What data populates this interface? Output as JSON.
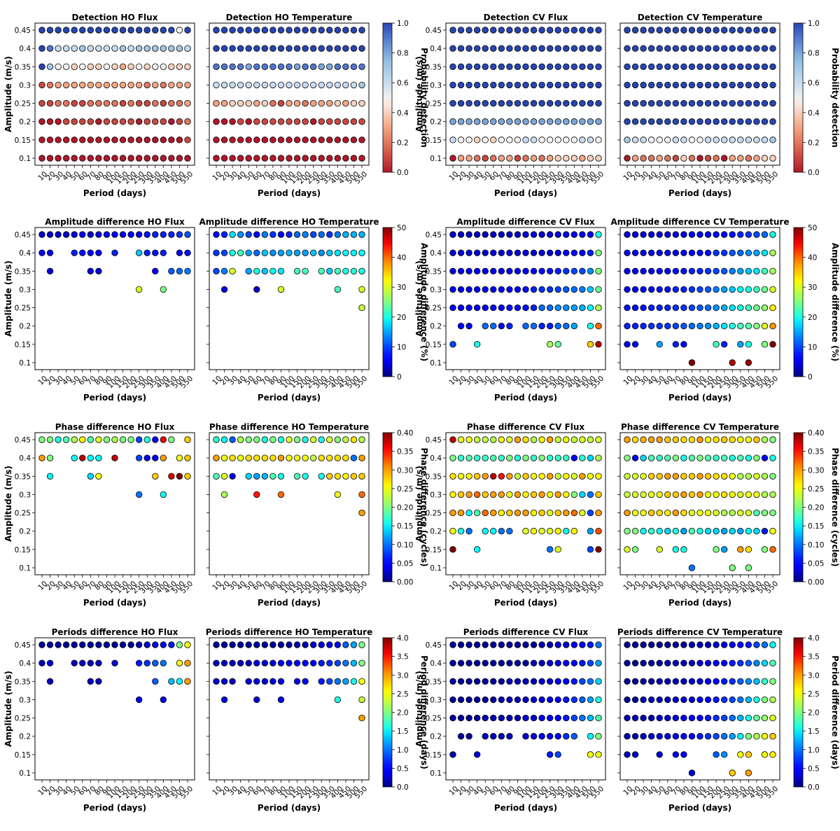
{
  "figure": {
    "xlabel": "Period (days)",
    "ylabel": "Amplitude (m/s)",
    "periods": [
      "10",
      "20",
      "30",
      "40",
      "50",
      "60",
      "70",
      "80",
      "90",
      "100",
      "150",
      "200",
      "250",
      "300",
      "350",
      "400",
      "450",
      "500",
      "550"
    ],
    "amplitudes": [
      "0.1",
      "0.15",
      "0.2",
      "0.25",
      "0.3",
      "0.35",
      "0.4",
      "0.45"
    ],
    "rows": [
      {
        "colorbars": [
          {
            "label": "Probability detection",
            "ticks": [
              "0.0",
              "0.2",
              "0.4",
              "0.6",
              "0.8",
              "1.0"
            ],
            "colormap": "RdBu"
          },
          {
            "label": "Probability detection",
            "ticks": [
              "0.0",
              "0.2",
              "0.4",
              "0.6",
              "0.8",
              "1.0"
            ],
            "colormap": "RdBu"
          }
        ]
      },
      {
        "colorbars": [
          {
            "label": "Amplitude difference (%)",
            "ticks": [
              "0",
              "10",
              "20",
              "30",
              "40",
              "50"
            ],
            "colormap": "jet"
          },
          {
            "label": "Amplitude difference (%)",
            "ticks": [
              "0",
              "10",
              "20",
              "30",
              "40",
              "50"
            ],
            "colormap": "jet"
          }
        ]
      },
      {
        "colorbars": [
          {
            "label": "Phase difference (cycles)",
            "ticks": [
              "0.00",
              "0.05",
              "0.10",
              "0.15",
              "0.20",
              "0.25",
              "0.30",
              "0.35",
              "0.40"
            ],
            "colormap": "jet"
          },
          {
            "label": "Phase difference (cycles)",
            "ticks": [
              "0.00",
              "0.05",
              "0.10",
              "0.15",
              "0.20",
              "0.25",
              "0.30",
              "0.35",
              "0.40"
            ],
            "colormap": "jet"
          }
        ]
      },
      {
        "colorbars": [
          {
            "label": "Period difference (days)",
            "ticks": [
              "0.0",
              "0.5",
              "1.0",
              "1.5",
              "2.0",
              "2.5",
              "3.0",
              "3.5",
              "4.0"
            ],
            "colormap": "jet"
          },
          {
            "label": "Period difference (days)",
            "ticks": [
              "0.0",
              "0.5",
              "1.0",
              "1.5",
              "2.0",
              "2.5",
              "3.0",
              "3.5",
              "4.0"
            ],
            "colormap": "jet"
          }
        ]
      }
    ]
  },
  "chart_data": [
    {
      "type": "scatter",
      "title": "Detection HO Flux",
      "colormap": "RdBu",
      "clim": [
        0,
        1
      ],
      "rows": {
        "0.45": "1 1 1 1 1 1 1 1 1 1 1 1 1 1 1 1 1 .5 1",
        "0.4": "1 .9 .6 .6 .6 .7 .6 .6 .6 .6 .7 .6 .7 .7 .7 .7 .7 .7 .6",
        "0.35": "1 .7 .5 .5 .4 .5 .4 .4 .5 .4 .3 .4 .5 .4 .5 .5 .4 .4 .4",
        "0.3": ".1 .2 .3 .3 .3 .3 .3 .3 .3 .3 .3 .3 .3 .2 .3 .2 .3 .3 .3",
        "0.25": ".1 .1 .2 .2 .1 .1 .2 .2 .2 .2 .1 .2 .1 .1 .2 .1 .2 .2 .3",
        "0.2": "0 0 0 .1 .1 .1 .1 0 .1 .1 .1 .1 0 .1 .1 .1 0 .1 .2",
        "0.15": "0 0 0 0 0 0 0 0 0 0 0 0 0 0 0 0 0 0 .1",
        "0.1": "0 0 0 0 0 0 0 0 0 0 0 0 0 0 0 0 0 0 0"
      }
    },
    {
      "type": "scatter",
      "title": "Detection HO Temperature",
      "colormap": "RdBu",
      "clim": [
        0,
        1
      ],
      "rows": {
        "0.45": "1 1 1 1 1 1 1 1 1 1 1 1 1 1 1 1 1 1 1",
        "0.4": "1 1 1 1 1 1 1 1 1 1 1 1 1 1 1 1 1 1 1",
        "0.35": ".9 .9 .9 .9 .8 .9 .9 .9 .9 .9 .8 .9 .9 .8 .8 .9 .9 .9 .9",
        "0.3": ".6 .6 .6 .6 .6 .6 .6 .6 .6 .6 .6 .6 .6 .6 .6 .6 .6 .6 .7",
        "0.25": ".3 .3 .4 .4 .4 .3 .4 .2 .1 .3 .3 .2 .3 .3 .3 .4 .3 .4 .4",
        "0.2": "0 0 0 .1 0 .1 .1 .1 .1 .1 .1 .1 0 .1 .1 .1 .1 .1 .1",
        "0.15": "0 0 0 0 0 0 0 0 0 0 0 0 0 0 0 0 0 0 0",
        "0.1": "0 0 0 0 0 0 0 0 0 0 0 0 0 0 0 0 0 0 0"
      }
    },
    {
      "type": "scatter",
      "title": "Detection CV Flux",
      "colormap": "RdBu",
      "clim": [
        0,
        1
      ],
      "rows": {
        "0.45": "1 1 1 1 1 1 1 1 1 1 1 1 1 1 1 1 1 1 1",
        "0.4": "1 1 1 1 1 1 1 1 1 1 1 1 1 1 1 1 1 1 1",
        "0.35": "1 1 1 1 1 1 1 1 1 1 1 1 1 1 1 1 1 1 1",
        "0.3": "1 1 1 1 1 1 1 1 1 1 1 1 1 1 1 1 1 1 1",
        "0.25": "1 1 1 1 1 1 1 1 1 1 1 1 1 1 1 1 1 1 1",
        "0.2": ".8 .8 .8 .8 .8 .8 .8 .8 .8 .8 .8 .8 .8 .8 .8 .8 .8 .8 .8",
        "0.15": ".6 .5 .5 .4 .5 .4 .5 .5 .5 .6 .6 .5 .5 .5 .5 .5 .6 .6 .5",
        "0.1": "0 .3 .3 .2 .1 .2 .3 .3 .1 .2 .3 .2 .3 .4 .4 .4 .3 .4 .4"
      }
    },
    {
      "type": "scatter",
      "title": "Detection CV Temperature",
      "colormap": "RdBu",
      "clim": [
        0,
        1
      ],
      "rows": {
        "0.45": "1 1 1 1 1 1 1 1 1 1 1 1 1 1 1 1 1 1 1",
        "0.4": "1 1 1 1 1 1 1 1 1 1 1 1 1 1 1 1 1 1 1",
        "0.35": "1 1 1 1 1 1 1 1 1 1 1 1 1 1 1 1 1 1 1",
        "0.3": "1 1 1 1 1 1 1 1 1 1 1 1 1 1 1 1 1 1 1",
        "0.25": "1 1 1 1 1 1 1 1 1 1 1 1 1 1 1 1 1 1 1",
        "0.2": "1 1 1 1 1 1 1 1 1 1 1 1 1 1 1 1 1 1 1",
        "0.15": ".7 .6 .6 .5 .5 .5 .6 .6 .5 .5 .6 .6 .6 .6 .6 .6 .6 .6 .7",
        "0.1": "0 .3 .2 .2 .3 .2 .1 .4 .2 0 .1 .2 0 .3 .3 .2 .3 .4 .4"
      }
    },
    {
      "type": "scatter",
      "title": "Amplitude difference HO Flux",
      "colormap": "jet",
      "clim": [
        0,
        50
      ],
      "rows": {
        "0.45": "3 3 3 3 4 5 3 4 5 6 5 6 5 7 8 8 8 9 11",
        "0.4": "6 5 - - 8 7 6 6 - 8 - - 17 8 7 8 - 6 7",
        "0.35": "- 4 - - - - 4 4 - - - - - - 5 - 11 12 13",
        "0.3": "- - - - - - - - - - - - 30 - - 25 - - -"
      }
    },
    {
      "type": "scatter",
      "title": "Amplitude difference HO Temperature",
      "colormap": "jet",
      "clim": [
        0,
        50
      ],
      "rows": {
        "0.45": "6 8 18 14 10 6 13 9 6 8 12 13 10 12 9 13 16 16 16",
        "0.4": "9 10 20 22 15 12 17 14 15 16 15 15 17 14 17 18 19 19 19",
        "0.35": "10 13 30 - 15 20 17 19 18 - 22 22 - 22 17 22 20 21 20",
        "0.3": "- 4 - - - 3 - - 30 - - - - - - 22 - - 30",
        "0.25": "- - - - - - - - - - - - - - - - - - 29"
      }
    },
    {
      "type": "scatter",
      "title": "Amplitude difference CV Flux",
      "colormap": "jet",
      "clim": [
        0,
        50
      ],
      "rows": {
        "0.45": "3 3 3 3 3 3 3 3 3 4 4 3 4 4 5 5 5 5 20",
        "0.4": "4 4 4 4 4 4 4 4 4 4 4 4 4 4 6 6 6 8 25",
        "0.35": "4 5 5 5 5 5 5 5 5 6 6 7 7 8 9 10 10 14 25",
        "0.3": "5 5 5 6 5 6 6 6 6 7 8 9 9 10 11 12 13 17 24",
        "0.25": "6 6 6 6 6 7 6 7 7 7 8 12 12 14 14 15 16 19 28",
        "0.2": "- 6 6 - 12 12 6 8 - 12 12 8 8 12 12 15 - 20 40",
        "0.15": "10 - - 20 - - - - - - - - 27 24 - - - 35 48"
      }
    },
    {
      "type": "scatter",
      "title": "Amplitude difference CV Temperature",
      "colormap": "jet",
      "clim": [
        0,
        50
      ],
      "rows": {
        "0.45": "4 4 4 4 4 4 4 4 5 5 5 6 6 7 8 9 10 12 20",
        "0.4": "5 5 5 5 5 5 5 6 6 7 7 9 9 11 12 14 15 18 27",
        "0.35": "6 6 6 6 6 6 7 7 8 8 9 10 11 13 15 17 18 22 27",
        "0.3": "6 6 6 7 7 7 8 8 9 10 11 13 15 17 19 20 22 24 30",
        "0.25": "7 7 7 8 8 8 9 9 10 11 12 14 16 18 20 22 24 26 33",
        "0.2": "8 8 8 9 9 9 10 11 12 13 14 16 18 20 22 23 25 30 38",
        "0.15": "6 6 - - 15 - 8 6 - - - 22 8 - 15 20 - 25 50",
        "0.1": "- - - - - - - - 50 - - - - 48 - 49 - - -"
      }
    },
    {
      "type": "scatter",
      "title": "Phase difference HO Flux",
      "colormap": "jet",
      "clim": [
        0,
        0.4
      ],
      "rows": {
        "0.45": ".2 .2 .16 .18 .22 .26 .18 .24 .2 .22 .2 .2 .08 .16 .05 .36 .2 - .28",
        "0.4": ".3 .2 - - .15 .38 .15 .15 - .38 - - .08 .05 .05 .3 - .25 .28",
        "0.35": "- .15 - - - - .14 .25 - - - - - - .28 - .37 .4 .28",
        "0.3": "- - - - - - - - - - - - .1 - - .15 - - -"
      }
    },
    {
      "type": "scatter",
      "title": "Phase difference HO Temperature",
      "colormap": "jet",
      "clim": [
        0,
        0.4
      ],
      "rows": {
        "0.45": ".17 .15 .09 .22 .2 .2 .16 .2 .16 .24 .2 .16 .24 .16 .24 .2 .23 .27 .22",
        "0.4": ".3 .25 .27 .25 .27 .27 .27 .27 .3 .25 .25 .25 .23 .27 .27 .27 .27 .1 .3",
        "0.35": ".18 .24 .04 - .14 .12 .13 .18 .16 - .18 .16 - .16 .28 .27 .26 .28 .28",
        "0.3": "- .22 - - - .35 - - .32 - - - - - - .25 - - .32",
        "0.25": "- - - - - - - - - - - - - - - - - - .3"
      }
    },
    {
      "type": "scatter",
      "title": "Phase difference CV Flux",
      "colormap": "jet",
      "clim": [
        0,
        0.4
      ],
      "rows": {
        "0.45": ".38 .25 .25 .23 .23 .22 .26 .24 .3 .27 .22 .26 .3 .23 .25 .23 .24 .23 .24",
        "0.4": ".2 .17 .18 .17 .17 .18 .17 .2 .16 .2 .17 .2 .17 .17 .17 .05 .17 .14 .22",
        "0.35": ".27 .25 .26 .28 .3 .38 .35 .3 .23 .28 .25 .26 .3 .23 .26 .24 .3 .25 .26",
        "0.3": ".26 .28 .3 .32 .28 .3 .3 .25 .3 .26 .28 .3 .25 .3 .26 .2 .14 .1 .28",
        "0.25": ".3 .3 .15 .18 .32 .3 .26 .28 .3 .3 .26 .28 .24 .28 .3 .32 .24 .08 .3",
        "0.2": ".25 .16 .1 - .15 .15 .1 .1 - .24 .25 .24 .24 .26 .16 .26 - .12 .33",
        "0.15": ".4 - - .15 - - - - - - - - .1 .24 - - - .08 .4"
      }
    },
    {
      "type": "scatter",
      "title": "Phase difference CV Temperature",
      "colormap": "jet",
      "clim": [
        0,
        0.4
      ],
      "rows": {
        "0.45": ".3 .27 .29 .3 .3 .28 .28 .27 .27 .3 .26 .27 .28 .27 .26 .25 .28 .22 .2",
        "0.4": ".2 .04 .14 .18 .17 .18 .2 .16 .18 .2 .18 .17 .18 .16 .18 .16 .2 .05 .16",
        "0.35": ".23 .24 .24 .28 .28 .3 .3 .28 .28 .3 .28 .27 .27 .25 .22 .22 .24 .22 .2",
        "0.3": ".23 .24 .24 .25 .25 .28 .28 .3 .28 .3 .25 .25 .27 .25 .24 .25 .25 .22 .22",
        "0.25": ".3 .25 .25 .28 .27 .26 .3 .27 .24 .25 .25 .24 .22 .22 .24 .24 .18 .2 .2",
        "0.2": ".2 .2 .15 .17 .15 .14 .16 .12 .18 .16 .14 .14 .12 .14 .12 .15 .14 .06 .25",
        "0.15": ".24 .2 - - .24 - .16 .16 - - - .2 .12 - .3 .27 - .2 .32",
        "0.1": "- - - - - - - - .1 - - - - .2 - .2 - - -"
      }
    },
    {
      "type": "scatter",
      "title": "Periods difference HO Flux",
      "colormap": "jet",
      "clim": [
        0,
        4
      ],
      "rows": {
        "0.45": ".1 .1 .1 .1 .1 .1 .1 .1 .1 .1 .1 .1 .2 .3 .4 .5 .6 2 2.5",
        "0.4": ".2 .3 - - .2 .2 .2 .2 - .3 - - .6 .7 .9 1 - 2.5 3",
        "0.35": "- .2 - - - - .2 .2 - - - - - - .9 - 1.3 1.5 3",
        "0.3": "- - - - - - - - - - - - .4 - - .5 - - -"
      }
    },
    {
      "type": "scatter",
      "title": "Periods difference HO Temperature",
      "colormap": "jet",
      "clim": [
        0,
        4
      ],
      "rows": {
        "0.45": ".1 .1 .1 .1 .1 .1 .1 .1 .1 .1 .2 .2 .3 .3 .4 .5 .9 1.2 2",
        "0.4": ".2 .2 .2 .2 .2 .3 .3 .3 .4 .4 .5 .5 .5 .6 .7 .8 1 1.3 2",
        "0.35": ".3 .3 .2 - .3 .3 .3 .3 .4 - .5 .5 - .6 .8 1 1.2 1.6 2.5",
        "0.3": "- .3 - - - .3 - - .4 - - - - - - 1.6 - - 2.3",
        "0.25": "- - - - - - - - - - - - - - - - - - 3"
      }
    },
    {
      "type": "scatter",
      "title": "Periods difference CV Flux",
      "colormap": "jet",
      "clim": [
        0,
        4
      ],
      "rows": {
        "0.45": ".1 .1 .1 .1 .1 .1 .1 .1 .1 .1 .1 .2 .2 .3 .3 .4 .5 .6 1",
        "0.4": ".1 .1 .1 .1 .1 .1 .1 .1 .1 .1 .2 .2 .3 .3 .4 .5 .6 .8 1.2",
        "0.35": ".1 .1 .1 .1 .1 .1 .1 .2 .2 .2 .2 .3 .3 .4 .5 .6 .8 1 1.4",
        "0.3": ".1 .1 .1 .1 .1 .1 .2 .2 .2 .2 .3 .3 .4 .5 .6 .7 .9 1.2 1.6",
        "0.25": ".1 .1 .1 .1 .2 .2 .2 .2 .2 .3 .3 .4 .5 .5 .6 .8 1 1.3 1.8",
        "0.2": "- .1 .1 - .2 .2 .2 .2 - .3 .3 .4 .4 .5 .7 .9 - 1.5 2",
        "0.15": ".2 - - .3 - - - - - - - - .6 .8 - - - 2.5 2.5"
      }
    },
    {
      "type": "scatter",
      "title": "Periods difference CV Temperature",
      "colormap": "jet",
      "clim": [
        0,
        4
      ],
      "rows": {
        "0.45": ".1 .1 .1 .1 .1 .1 .1 .1 .2 .2 .2 .3 .3 .4 .5 .6 .8 1 1.5",
        "0.4": ".1 .1 .1 .1 .1 .2 .2 .2 .2 .3 .3 .4 .5 .6 .7 .9 1.1 1.4 1.8",
        "0.35": ".1 .1 .1 .1 .2 .2 .2 .2 .3 .3 .4 .5 .6 .7 .9 1.1 1.3 1.7 2",
        "0.3": ".1 .1 .2 .2 .2 .2 .3 .3 .3 .4 .5 .6 .7 .8 1 1.3 1.6 2 2.2",
        "0.25": ".2 .2 .2 .2 .3 .3 .3 .4 .4 .5 .6 .7 .8 1 1.3 1.6 1.9 2.1 2.4",
        "0.2": ".2 .2 .2 .3 .3 .3 .4 .4 .5 .6 .7 .8 1 1.2 1.5 2 2.2 2.5 2.8",
        "0.15": ".2 .2 - - .3 - .4 .4 - - - .9 1.1 - 2.5 2.8 - 2.5 2.6",
        "0.1": "- - - - - - - - .3 - - - - 2.8 - 3 - - -"
      }
    }
  ]
}
